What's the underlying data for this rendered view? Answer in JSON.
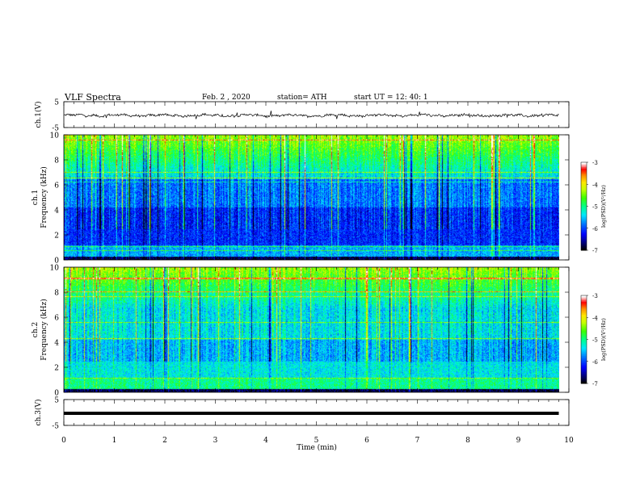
{
  "header": {
    "title": "VLF  Spectra",
    "date": "Feb. 2  , 2020",
    "station": "station= ATH",
    "start": "start  UT  =   12: 40: 1"
  },
  "chart_data": [
    {
      "type": "line",
      "name": "ch1-waveform",
      "ylabel": "ch.1(V)",
      "ylim": [
        -5,
        5
      ],
      "yticks": [
        "5",
        "-5"
      ],
      "xlim": [
        0,
        10
      ],
      "data_end_min": 9.8,
      "approx_level": -0.3,
      "approx_amplitude": 0.6
    },
    {
      "type": "heatmap",
      "name": "ch1-spectrogram",
      "ylabel": "ch.1\nFrequency  (kHz)",
      "ylabel_line1": "ch.1",
      "ylabel_line2": "Frequency  (kHz)",
      "ylim": [
        0,
        10
      ],
      "yticks": [
        "0",
        "2",
        "4",
        "6",
        "8",
        "10"
      ],
      "colorbar": {
        "label": "log(PSD)(V²/Hz)",
        "range": [
          -7,
          -3
        ],
        "ticks": [
          "-3",
          "-4",
          "-5",
          "-6",
          "-7"
        ],
        "colors": [
          "#000000",
          "#000080",
          "#0000ff",
          "#0088ff",
          "#00ffff",
          "#00ff80",
          "#40ff00",
          "#c0ff00",
          "#ffff00",
          "#ffa000",
          "#ff0000",
          "#ffffff"
        ]
      }
    },
    {
      "type": "heatmap",
      "name": "ch2-spectrogram",
      "ylabel_line1": "ch.2",
      "ylabel_line2": "Frequency  (kHz)",
      "ylim": [
        0,
        10
      ],
      "yticks": [
        "0",
        "2",
        "4",
        "6",
        "8",
        "10"
      ],
      "colorbar": {
        "label": "log(PSD)(V²/Hz)",
        "range": [
          -7,
          -3
        ],
        "ticks": [
          "-3",
          "-4",
          "-5",
          "-6",
          "-7"
        ]
      }
    },
    {
      "type": "line",
      "name": "ch3-waveform",
      "ylabel": "ch.3(V)",
      "ylim": [
        -5,
        5
      ],
      "yticks": [
        "5",
        "-5"
      ],
      "xlim": [
        0,
        10
      ],
      "data_end_min": 9.8,
      "approx_level": -0.3,
      "flat": true
    }
  ],
  "xaxis": {
    "label": "Time  (min)",
    "ticks": [
      "0",
      "1",
      "2",
      "3",
      "4",
      "5",
      "6",
      "7",
      "8",
      "9",
      "10"
    ],
    "xlim": [
      0,
      10
    ]
  }
}
